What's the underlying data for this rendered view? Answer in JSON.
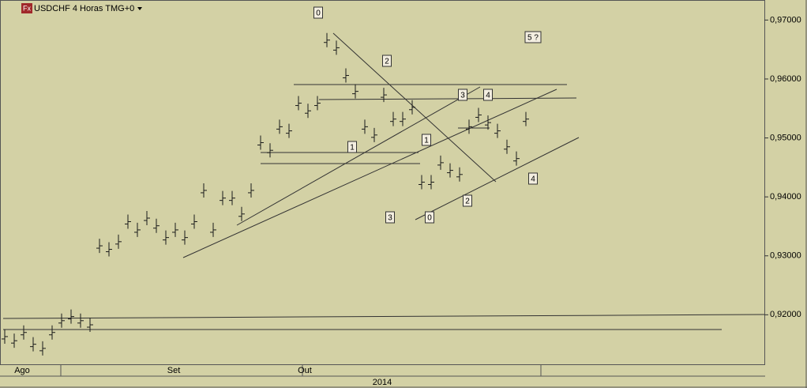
{
  "chart_data": {
    "type": "price-bars",
    "title": "USDCHF 4 Horas TMG+0",
    "icon": "Fx",
    "series": [
      {
        "name": "USDCHF",
        "color": "#1a1a1a",
        "values": [
          0.9163,
          0.9156,
          0.917,
          0.915,
          0.9143,
          0.917,
          0.919,
          0.9197,
          0.919,
          0.9183,
          0.9317,
          0.9311,
          0.9324,
          0.9358,
          0.9344,
          0.9364,
          0.9351,
          0.9331,
          0.9344,
          0.9331,
          0.9358,
          0.9411,
          0.9344,
          0.9398,
          0.9398,
          0.9371,
          0.9411,
          0.9492,
          0.9479,
          0.9519,
          0.9512,
          0.9559,
          0.9546,
          0.9559,
          0.9666,
          0.9653,
          0.9606,
          0.9579,
          0.9519,
          0.9505,
          0.9573,
          0.9532,
          0.9532,
          0.9552,
          0.9425,
          0.9425,
          0.9458,
          0.9445,
          0.9438,
          0.9519,
          0.9539,
          0.9526,
          0.9512,
          0.9485,
          0.9465,
          0.9532
        ]
      }
    ],
    "ylim": [
      0.9116,
      0.9734
    ],
    "yticks": [
      {
        "value": 0.92,
        "label": "0,92000"
      },
      {
        "value": 0.93,
        "label": "0,93000"
      },
      {
        "value": 0.94,
        "label": "0,94000"
      },
      {
        "value": 0.95,
        "label": "0,95000"
      },
      {
        "value": 0.96,
        "label": "0,96000"
      },
      {
        "value": 0.97,
        "label": "0,97000"
      }
    ],
    "months": [
      "Ago",
      "Set",
      "Out"
    ],
    "year": "2014",
    "annotations": [
      "0",
      "2",
      "3",
      "4",
      "5 ?",
      "1",
      "1",
      "3",
      "0",
      "2",
      "4"
    ]
  }
}
